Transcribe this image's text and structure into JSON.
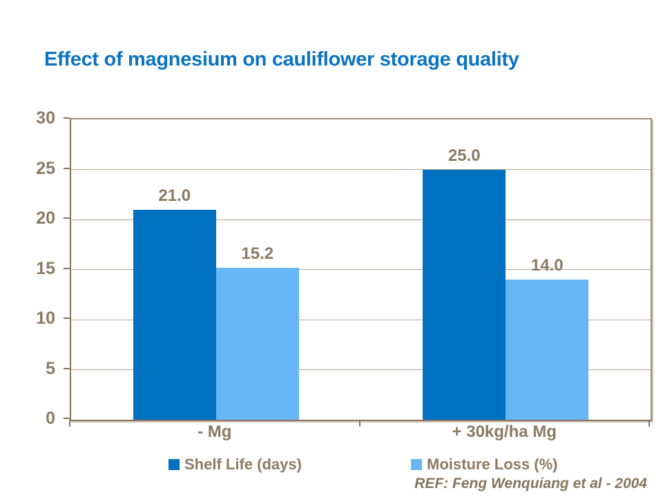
{
  "slide": {
    "title": "Effect of magnesium on cauliflower storage quality",
    "title_color": "#0b74c2"
  },
  "chart_data": {
    "type": "bar",
    "title": "Effect of magnesium on cauliflower storage quality",
    "categories": [
      "- Mg",
      "+ 30kg/ha Mg"
    ],
    "series": [
      {
        "name": "Shelf Life (days)",
        "color": "#0070c0",
        "values": [
          21.0,
          25.0
        ],
        "data_labels": [
          "21.0",
          "25.0"
        ]
      },
      {
        "name": "Moisture Loss (%)",
        "color": "#67b7f7",
        "values": [
          15.2,
          14.0
        ],
        "data_labels": [
          "15.2",
          "14.0"
        ]
      }
    ],
    "ylim": [
      0,
      30
    ],
    "ytick_interval": 5,
    "yticks": [
      30,
      25,
      20,
      15,
      10,
      5,
      0
    ],
    "xlabel": "",
    "ylabel": "",
    "grid": true,
    "legend_position": "bottom",
    "axis_text_color": "#8a7a62",
    "gridline_color": "#b3a492"
  },
  "footer": {
    "reference": "REF: Feng Wenquiang et al - 2004",
    "reference_color": "#85755c"
  }
}
